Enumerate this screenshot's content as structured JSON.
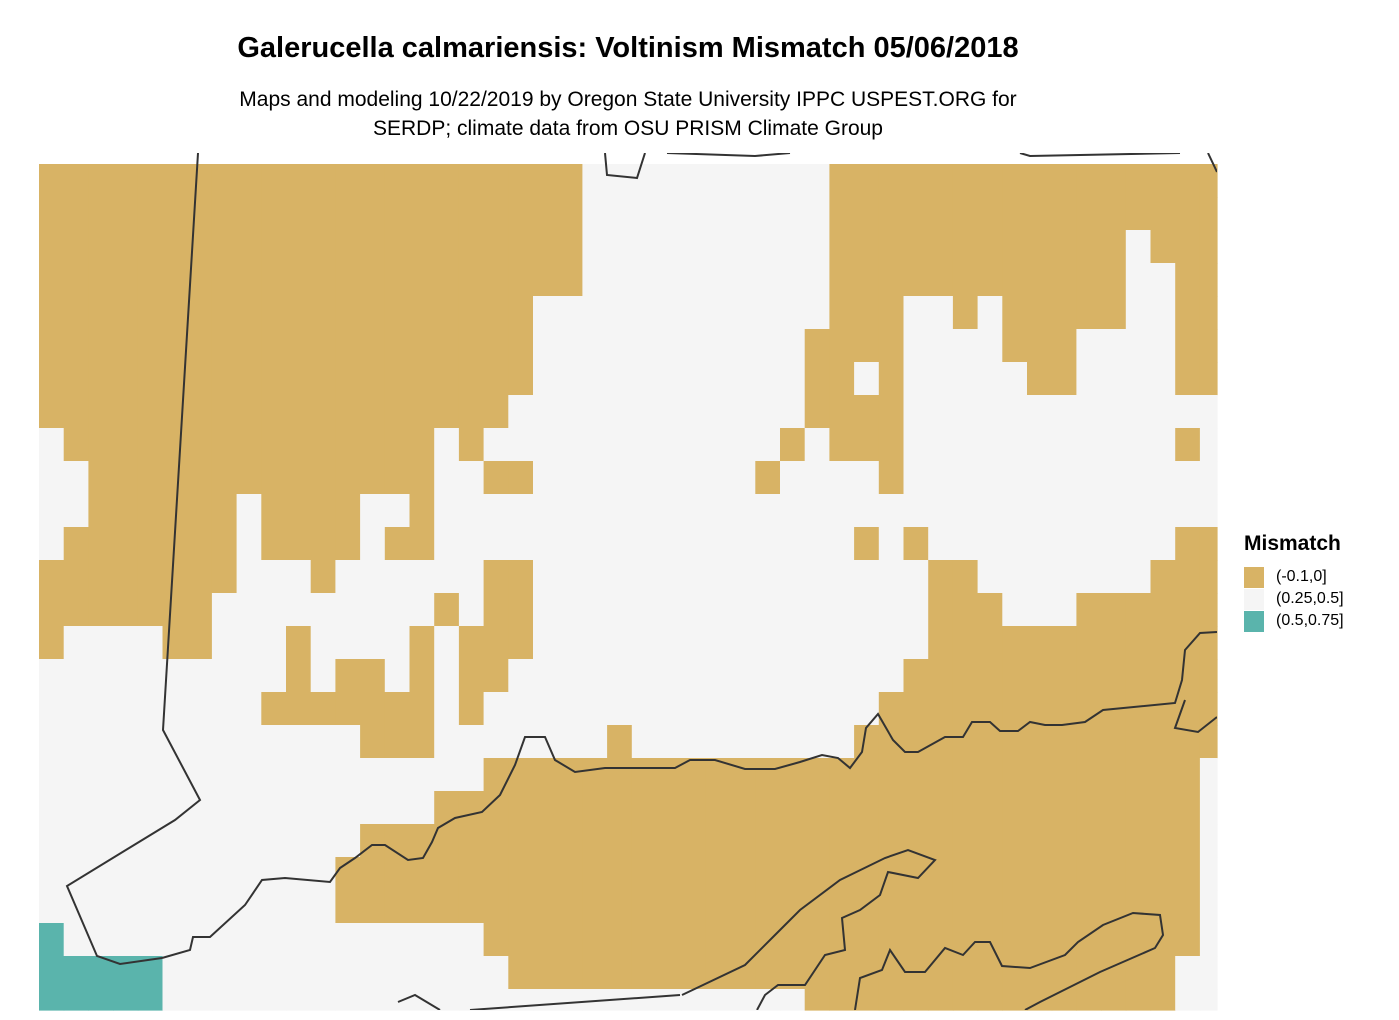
{
  "title": "Galerucella calmariensis: Voltinism Mismatch 05/06/2018",
  "subtitle_lines": [
    "Maps and modeling 10/22/2019 by Oregon State University IPPC USPEST.ORG for",
    "SERDP; climate data from OSU PRISM Climate Group"
  ],
  "legend": {
    "title": "Mismatch",
    "items": [
      {
        "label": "(-0.1,0]",
        "code": "A",
        "color": "#D8B365"
      },
      {
        "label": "(0.25,0.5]",
        "code": "B",
        "color": "#F5F5F5"
      },
      {
        "label": "(0.5,0.75]",
        "code": "C",
        "color": "#5AB4AC"
      }
    ]
  },
  "boundary_color": "#333333",
  "raster_grid": [
    "AAAAAAAAAAAAAAAAAAAAAABBBBBBBBBBAAAAAAAAAAAAAAAA",
    "AAAAAAAAAAAAAAAAAAAAAABBBBBBBBBBAAAAAAAAAAAAAAAA",
    "AAAAAAAAAAAAAAAAAAAAAABBBBBBBBBBAAAAAAAAAAAABAAA",
    "AAAAAAAAAAAAAAAAAAAAAABBBBBBBBBBAAAAAAAAAAAABBAA",
    "AAAAAAAAAAAAAAAAAAAABBBBBBBBBBBBAAABBABAAAAABBAA",
    "AAAAAAAAAAAAAAAAAAAABBBBBBBBBBBAAAABBBBAAABBBBAA",
    "AAAAAAAAAAAAAAAAAAAABBBBBBBBBBBAABABBBBBAABBBBAA",
    "AAAAAAAAAAAAAAAAAAABBBBBBBBBBBBAAAABBBBBBBBBBBBB",
    "BAAAAAAAAAAAAAAABABBBBBBBBBBBBABAAABBBBBBBBBBBAB",
    "BBAAAAAAAAAAAAAABBAABBBBBBBBBABBBBABBBBBBBBBBBBB",
    "BBAAAAAABAAAABBABBBBBBBBBBBBBBBBBBBBBBBBBBBBBBBB",
    "BAAAAAAABAAAABAABBBBBBBBBBBBBBBBBABABBBBBBBBBBAA",
    "AAAAAAAABBBABBBBBBAABBBBBBBBBBBBBBBBAABBBBBBBAAA",
    "AAAAAAABBBBBBBBBABAABBBBBBBBBBBBBBBBAAABBBAAAAAA",
    "ABBBBAABBBABBBBABAAABBBBBBBBBBBBBBBBAAAAAAAAAAAA",
    "BBBBBBBBBBABAABABAABBBBBBBBBBBBBBBBAAAAAAAAAAAAA",
    "BBBBBBBBBAAAAAAABABBBBBBBBBBBBBBBBAAAAAAAAAAAAAA",
    "BBBBBBBBBBBBBAAABBBBBBBABBBBBBBBBAAAAAAAAAAAAAAA",
    "BBBBBBBBBBBBBBBBBBAAAAAAAAAAAAAAAAAAAAAAAAAAAAAB",
    "BBBBBBBBBBBBBBBBAAAAAAAAAAAAAAAAAAAAAAAAAAAAAAAB",
    "BBBBBBBBBBBBBAAAAAAAAAAAAAAAAAAAAAAAAAAAAAAAAAAB",
    "BBBBBBBBBBBBAAAAAAAAAAAAAAAAAAAAAAAAAAAAAAAAAAAB",
    "BBBBBBBBBBBBAAAAAAAAAAAAAAAAAAAAAAAAAAAAAAAAAAAB",
    "CBBBBBBBBBBBBBBBBBAAAAAAAAAAAAAAAAAAAAAAAAAAAAAB",
    "CCCCCBBBBBBBBBBBBBBAAAAAAAAAAAAAAAAAAAAAAAAAAABB",
    "CCCCCBBBBBBBBBBBBBBBBBBBBBBBBBBAAAAAAAAAAAAAAABB"
  ]
}
